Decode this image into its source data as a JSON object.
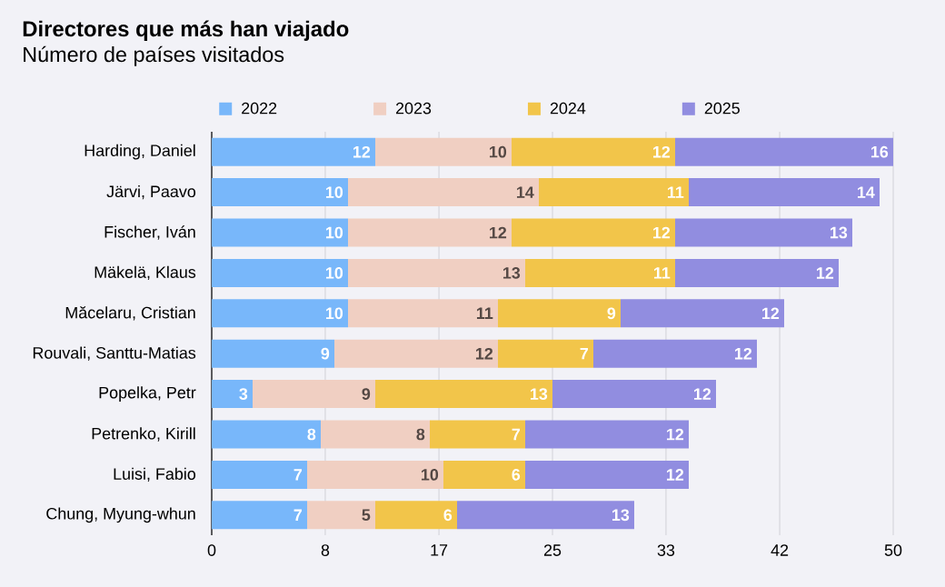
{
  "chart_data": {
    "type": "bar",
    "orientation": "horizontal",
    "stacked": true,
    "title": "Directores que más han viajado",
    "subtitle": "Número de países visitados",
    "categories": [
      "Harding, Daniel",
      "Järvi, Paavo",
      "Fischer, Iván",
      "Mäkelä, Klaus",
      "Măcelaru, Cristian",
      "Rouvali, Santtu-Matias",
      "Popelka, Petr",
      "Petrenko, Kirill",
      "Luisi, Fabio",
      "Chung, Myung-whun"
    ],
    "series": [
      {
        "name": "2022",
        "color": "#78b7fa",
        "values": [
          12,
          10,
          10,
          10,
          10,
          9,
          3,
          8,
          7,
          7
        ]
      },
      {
        "name": "2023",
        "color": "#f0cfc2",
        "values": [
          10,
          14,
          12,
          13,
          11,
          12,
          9,
          8,
          10,
          5
        ]
      },
      {
        "name": "2024",
        "color": "#f2c54a",
        "values": [
          12,
          11,
          12,
          11,
          9,
          7,
          13,
          7,
          6,
          6
        ]
      },
      {
        "name": "2025",
        "color": "#918de0",
        "values": [
          16,
          14,
          13,
          12,
          12,
          12,
          12,
          12,
          12,
          13
        ]
      }
    ],
    "xlim": [
      0,
      50
    ],
    "xticks": [
      0,
      {
        "value": 8.33,
        "label": "8"
      },
      {
        "value": 16.67,
        "label": "17"
      },
      25,
      {
        "value": 33.33,
        "label": "33"
      },
      {
        "value": 41.67,
        "label": "42"
      },
      50
    ],
    "grid": "x",
    "legend": "top",
    "data_labels": true
  }
}
